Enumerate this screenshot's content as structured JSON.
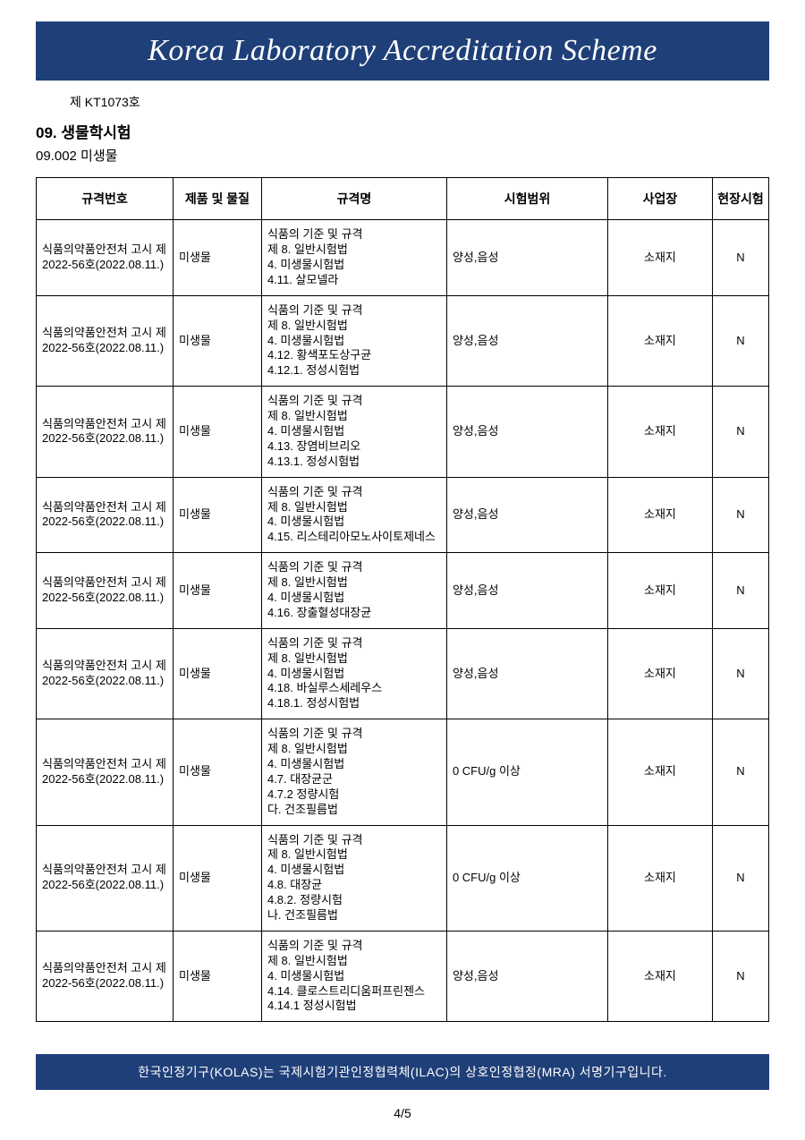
{
  "banner": {
    "title": "Korea Laboratory Accreditation Scheme",
    "bg_color": "#1f3f78",
    "text_color": "#ffffff",
    "title_fontsize": 34
  },
  "doc_number": "제 KT1073호",
  "section": {
    "title": "09. 생물학시험",
    "sub": "09.002 미생물"
  },
  "table": {
    "columns": [
      "규격번호",
      "제품 및 물질",
      "규격명",
      "시험범위",
      "사업장",
      "현장시험"
    ],
    "rows": [
      {
        "std": "식품의약품안전처 고시 제2022-56호(2022.08.11.)",
        "prod": "미생물",
        "name": "식품의 기준 및 규격\n제 8. 일반시험법\n4. 미생물시험법\n4.11. 살모넬라",
        "scope": "양성,음성",
        "site": "소재지",
        "field": "N"
      },
      {
        "std": "식품의약품안전처 고시 제2022-56호(2022.08.11.)",
        "prod": "미생물",
        "name": "식품의 기준 및 규격\n제 8. 일반시험법\n4. 미생물시험법\n4.12. 황색포도상구균\n4.12.1. 정성시험법",
        "scope": "양성,음성",
        "site": "소재지",
        "field": "N"
      },
      {
        "std": "식품의약품안전처 고시 제2022-56호(2022.08.11.)",
        "prod": "미생물",
        "name": "식품의 기준 및 규격\n제 8. 일반시험법\n4. 미생물시험법\n4.13. 장염비브리오\n4.13.1. 정성시험법",
        "scope": "양성,음성",
        "site": "소재지",
        "field": "N"
      },
      {
        "std": "식품의약품안전처 고시 제2022-56호(2022.08.11.)",
        "prod": "미생물",
        "name": "식품의 기준 및 규격\n제 8. 일반시험법\n4. 미생물시험법\n4.15. 리스테리아모노사이토제네스",
        "scope": "양성,음성",
        "site": "소재지",
        "field": "N"
      },
      {
        "std": "식품의약품안전처 고시 제2022-56호(2022.08.11.)",
        "prod": "미생물",
        "name": "식품의 기준 및 규격\n제 8. 일반시험법\n4. 미생물시험법\n4.16. 장출혈성대장균",
        "scope": "양성,음성",
        "site": "소재지",
        "field": "N"
      },
      {
        "std": "식품의약품안전처 고시 제2022-56호(2022.08.11.)",
        "prod": "미생물",
        "name": "식품의 기준 및 규격\n제 8. 일반시험법\n4. 미생물시험법\n4.18. 바실루스세레우스\n4.18.1. 정성시험법",
        "scope": "양성,음성",
        "site": "소재지",
        "field": "N"
      },
      {
        "std": "식품의약품안전처 고시 제2022-56호(2022.08.11.)",
        "prod": "미생물",
        "name": "식품의 기준 및 규격\n제 8. 일반시험법\n4. 미생물시험법\n4.7. 대장균군\n4.7.2 정량시험\n다. 건조필름법",
        "scope": "0 CFU/g 이상",
        "site": "소재지",
        "field": "N"
      },
      {
        "std": "식품의약품안전처 고시 제2022-56호(2022.08.11.)",
        "prod": "미생물",
        "name": "식품의 기준 및 규격\n제 8. 일반시험법\n4. 미생물시험법\n4.8. 대장균\n4.8.2. 정량시험\n나. 건조필름법",
        "scope": "0 CFU/g 이상",
        "site": "소재지",
        "field": "N"
      },
      {
        "std": "식품의약품안전처 고시 제2022-56호(2022.08.11.)",
        "prod": "미생물",
        "name": "식품의 기준 및 규격\n제 8. 일반시험법\n4. 미생물시험법\n4.14. 클로스트리디움퍼프린젠스\n4.14.1 정성시험법",
        "scope": "양성,음성",
        "site": "소재지",
        "field": "N"
      }
    ]
  },
  "footer": {
    "text": "한국인정기구(KOLAS)는 국제시험기관인정협력체(ILAC)의 상호인정협정(MRA) 서명기구입니다.",
    "bg_color": "#1f3f78",
    "text_color": "#ffffff"
  },
  "page_number": "4/5"
}
